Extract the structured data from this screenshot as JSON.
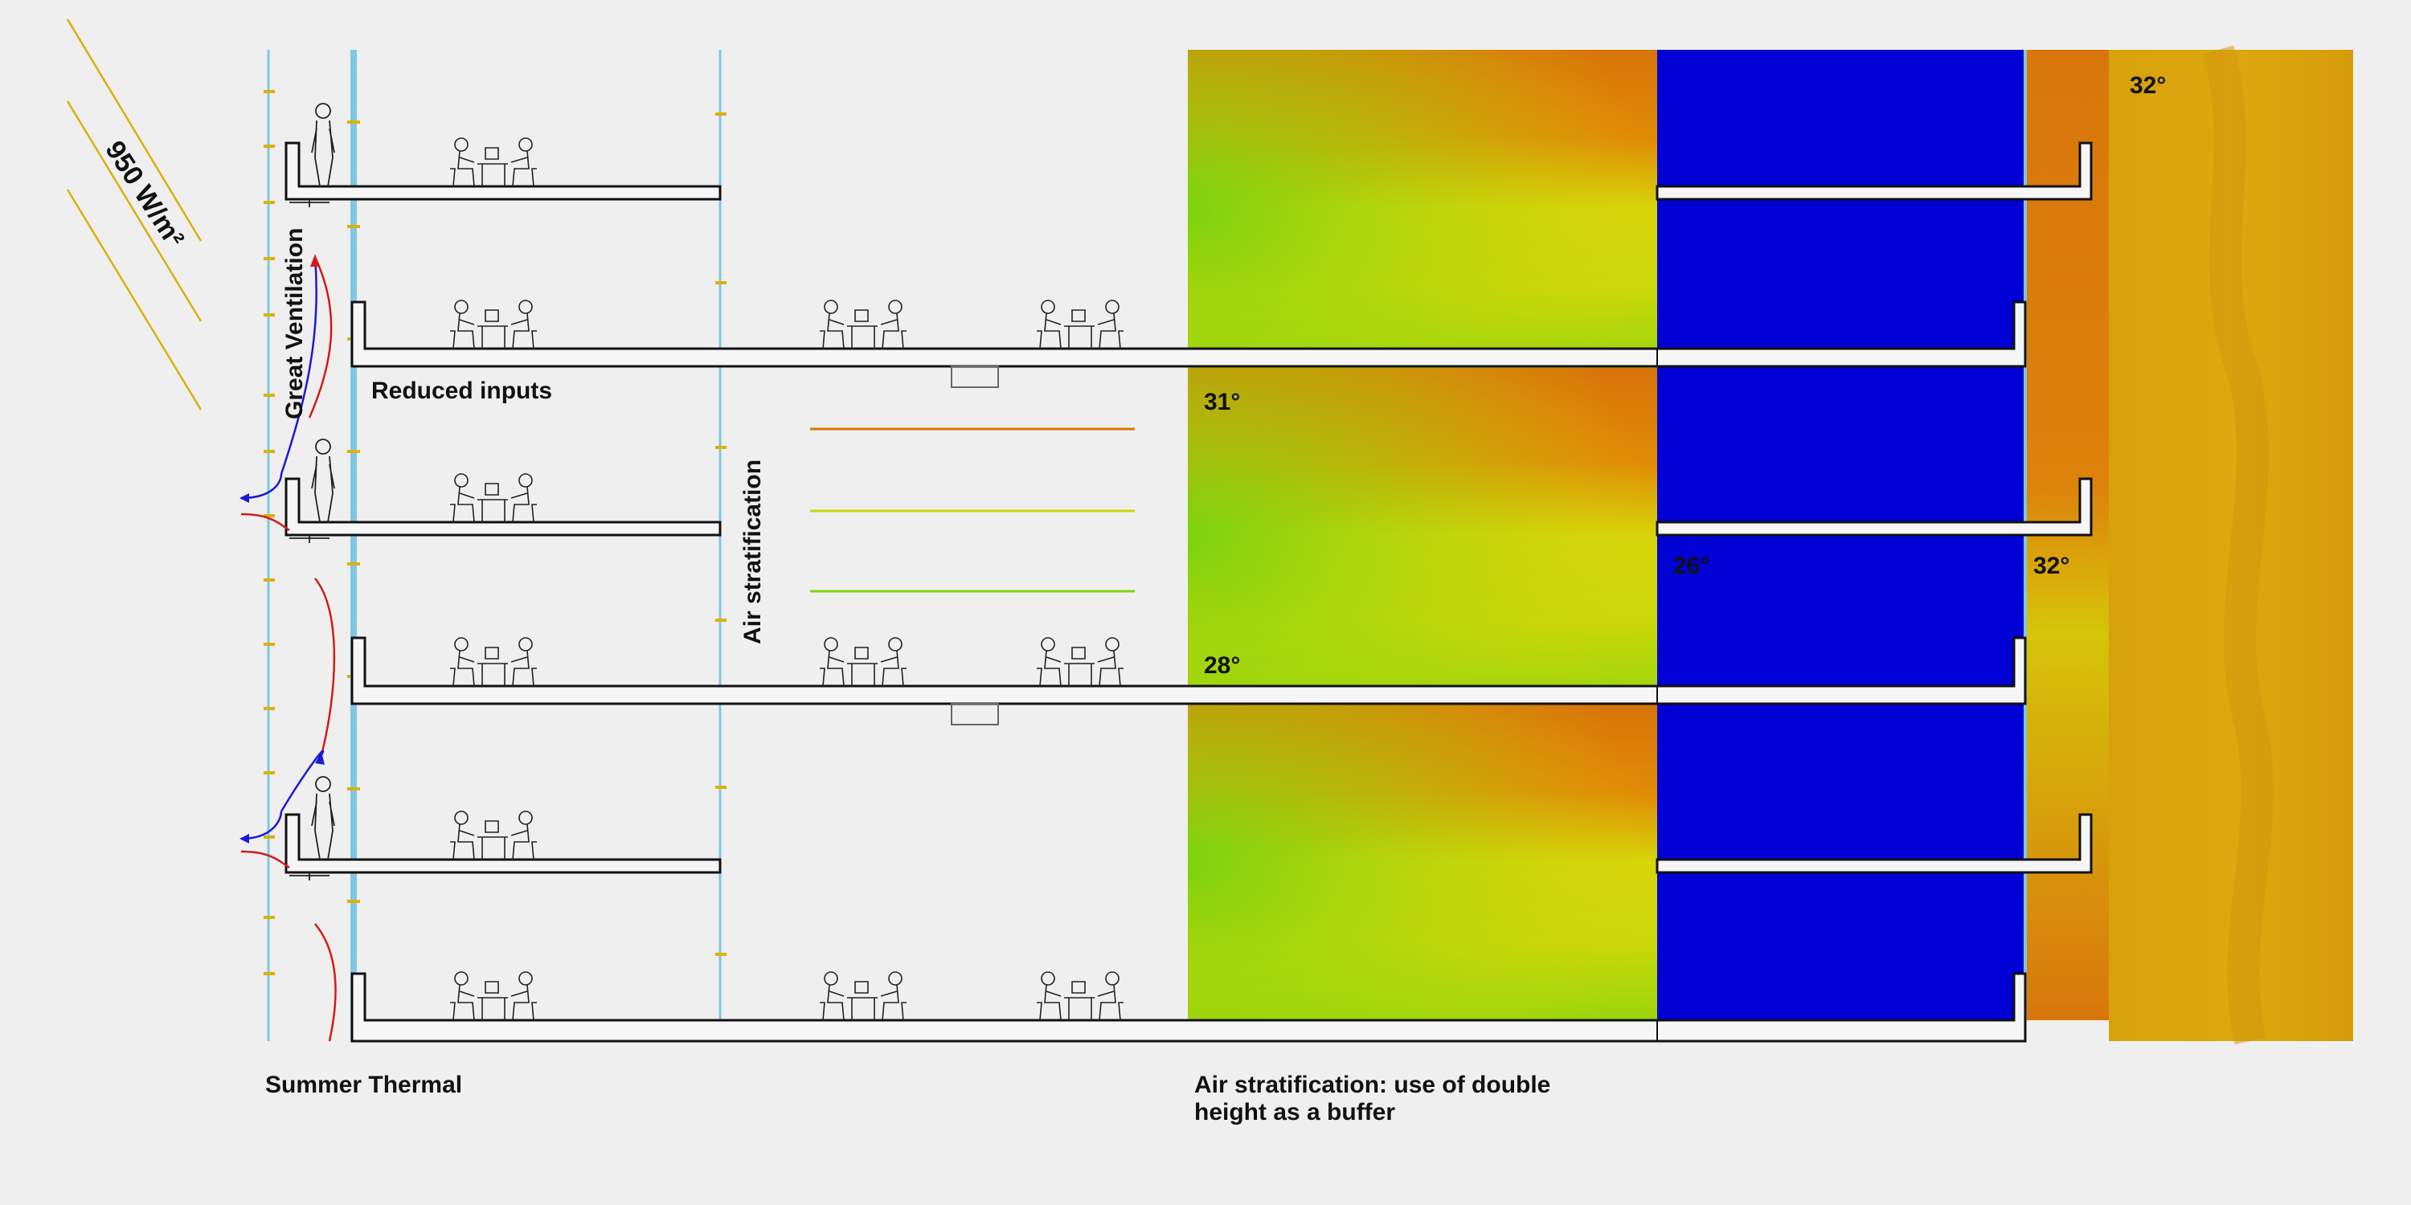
{
  "labels": {
    "irradiance": "950 W/m²",
    "great_ventilation": "Great Ventilation",
    "reduced_inputs": "Reduced inputs",
    "air_stratification": "Air stratification",
    "temp_top_right": "32°",
    "temp_mid_right": "32°",
    "temp_atrium_upper": "31°",
    "temp_atrium_lower": "28°",
    "temp_blue": "26°"
  },
  "captions": {
    "summer_thermal": "Summer Thermal",
    "stratification_line1": "Air stratification: use of double",
    "stratification_line2": "height as a buffer"
  },
  "colors": {
    "background": "#efefef",
    "hot_orange": "#d8740a",
    "warm_yellow": "#d6d50a",
    "cool_green": "#82d20f",
    "cold_blue": "#0000d4",
    "exterior_ochre": "#d6a00b",
    "glazing_blue": "#7ec8e3",
    "sun_ray": "#d9b20a",
    "airflow_red": "#d41a1a",
    "airflow_blue": "#1a1ad4"
  }
}
